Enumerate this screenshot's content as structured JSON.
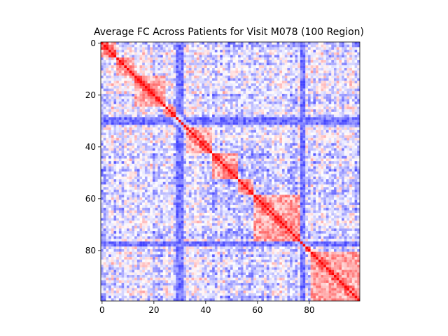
{
  "chart_data": {
    "type": "heatmap",
    "title": "Average FC Across Patients for Visit M078 (100 Region)",
    "xlabel": "",
    "ylabel": "",
    "n_regions": 100,
    "colormap": "bwr",
    "vmin": -1,
    "vmax": 1,
    "diagonal_value": 1,
    "grid": false,
    "xticks": [
      0,
      20,
      40,
      60,
      80
    ],
    "yticks": [
      0,
      20,
      40,
      60,
      80
    ],
    "strong_negative_regions": [
      29,
      30,
      31,
      77,
      78
    ],
    "colors": {
      "negative": "#0000ff",
      "neutral": "#ffffff",
      "positive": "#ff0000"
    }
  }
}
